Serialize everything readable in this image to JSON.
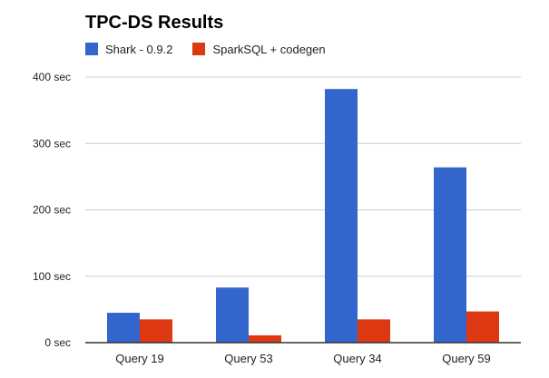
{
  "colors": {
    "shark": "#3366cc",
    "sparksql": "#dc3912",
    "grid": "#cccccc",
    "axis": "#333333"
  },
  "chart_data": {
    "type": "bar",
    "title": "TPC-DS Results",
    "xlabel": "",
    "ylabel": "",
    "categories": [
      "Query 19",
      "Query 53",
      "Query 34",
      "Query 59"
    ],
    "series": [
      {
        "name": "Shark - 0.9.2",
        "values": [
          45,
          83,
          382,
          264
        ]
      },
      {
        "name": "SparkSQL + codegen",
        "values": [
          35,
          11,
          35,
          47
        ]
      }
    ],
    "ylim": [
      0,
      400
    ],
    "yticks": [
      0,
      100,
      200,
      300,
      400
    ],
    "ytick_labels": [
      "0 sec",
      "100 sec",
      "200 sec",
      "300 sec",
      "400 sec"
    ],
    "grid": true,
    "legend": "top-left"
  }
}
